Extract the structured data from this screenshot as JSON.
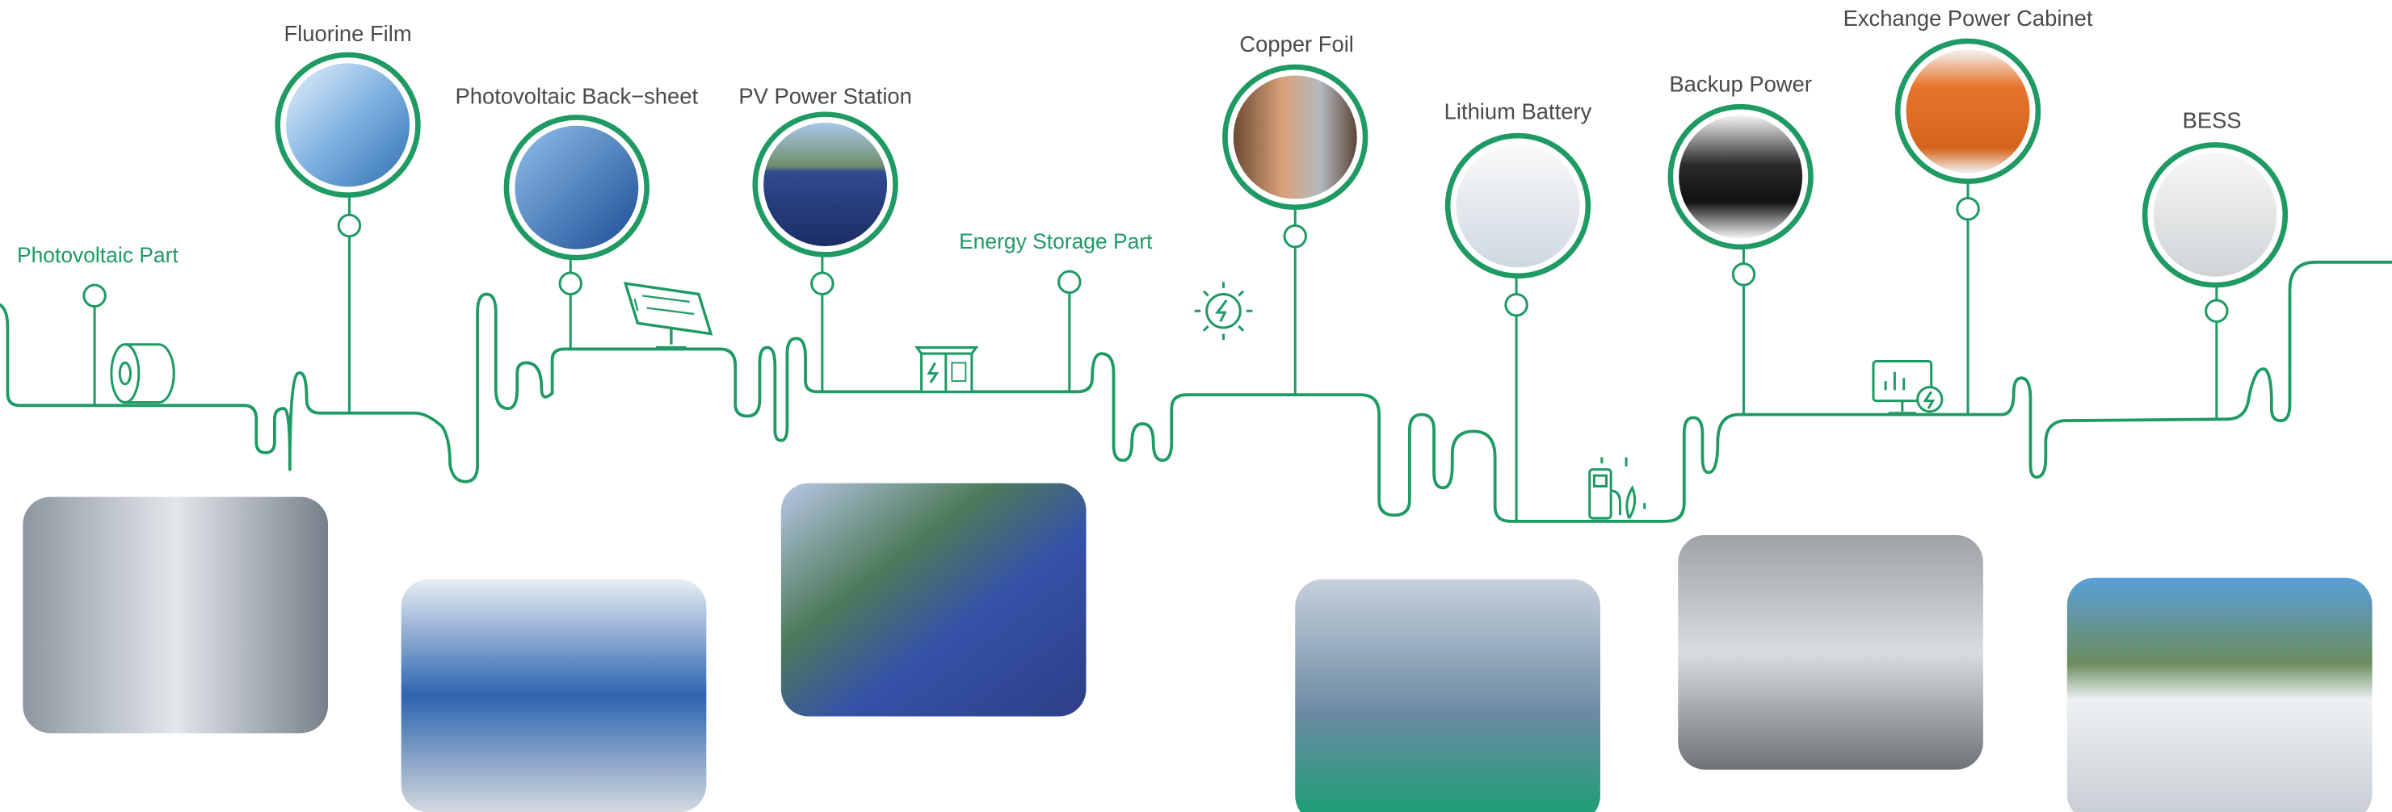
{
  "sections": [
    {
      "label": "Photovoltaic Part"
    },
    {
      "label": "Energy Storage Part"
    }
  ],
  "products": [
    {
      "label": "Fluorine Film"
    },
    {
      "label": "Photovoltaic Back−sheet"
    },
    {
      "label": "PV Power Station"
    },
    {
      "label": "Copper Foil"
    },
    {
      "label": "Lithium Battery"
    },
    {
      "label": "Backup Power"
    },
    {
      "label": "Exchange Power Cabinet"
    },
    {
      "label": "BESS"
    }
  ]
}
